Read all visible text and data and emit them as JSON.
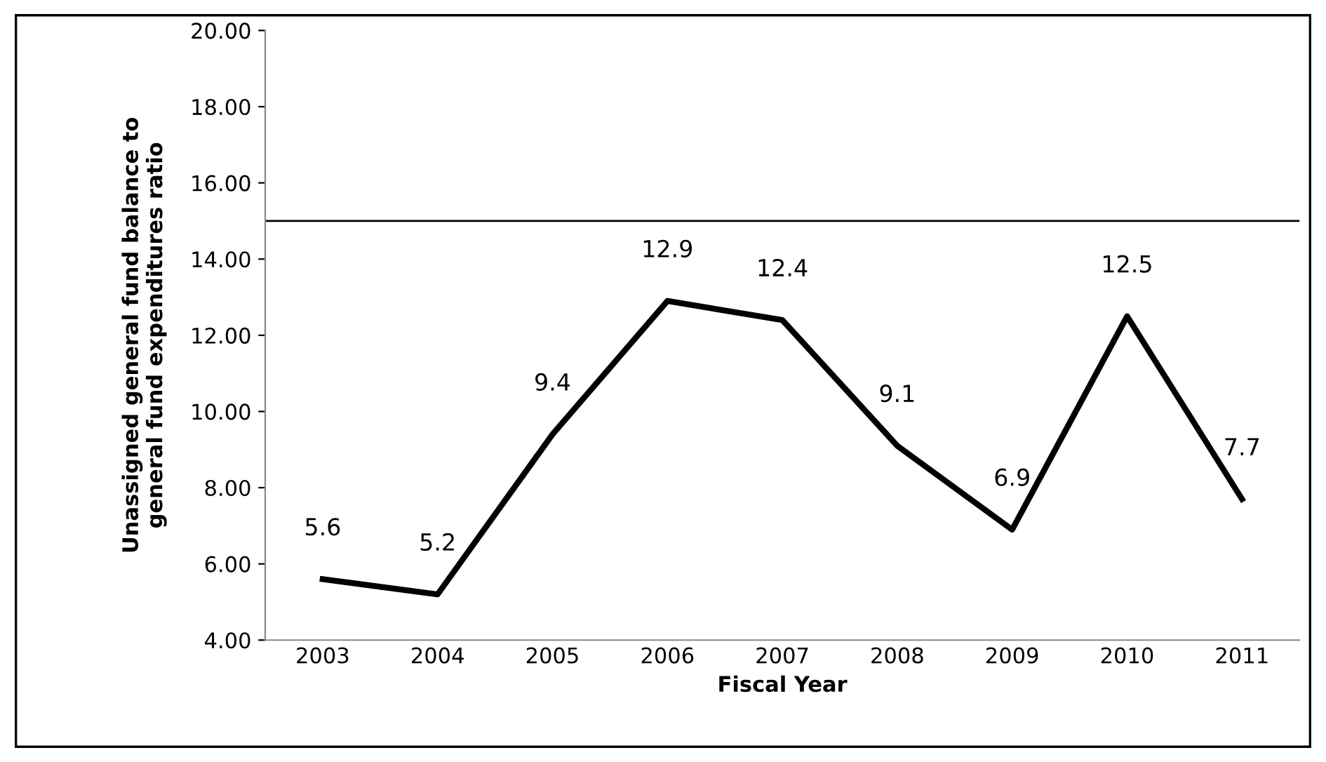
{
  "chart_data": {
    "type": "line",
    "xlabel": "Fiscal Year",
    "ylabel": "Unassigned general fund balance to\ngeneral fund expenditures ratio",
    "categories": [
      "2003",
      "2004",
      "2005",
      "2006",
      "2007",
      "2008",
      "2009",
      "2010",
      "2011"
    ],
    "series": [
      {
        "color": "#000000",
        "values": [
          5.6,
          5.2,
          9.4,
          12.9,
          12.4,
          9.1,
          6.9,
          12.5,
          7.7
        ]
      }
    ],
    "data_labels": true,
    "ylim": [
      4,
      20
    ],
    "yticks": [
      {
        "value": 4,
        "label": "4.00"
      },
      {
        "value": 6,
        "label": "6.00"
      },
      {
        "value": 8,
        "label": "8.00"
      },
      {
        "value": 10,
        "label": "10.00"
      },
      {
        "value": 12,
        "label": "12.00"
      },
      {
        "value": 14,
        "label": "14.00"
      },
      {
        "value": 16,
        "label": "16.00"
      },
      {
        "value": 18,
        "label": "18.00"
      },
      {
        "value": 20,
        "label": "20.00"
      }
    ],
    "ref_lines": [
      {
        "axis": "y",
        "value": 15,
        "color": "#000000"
      }
    ],
    "grid": false,
    "legend": false,
    "marker": "none",
    "line_style": "solid"
  }
}
